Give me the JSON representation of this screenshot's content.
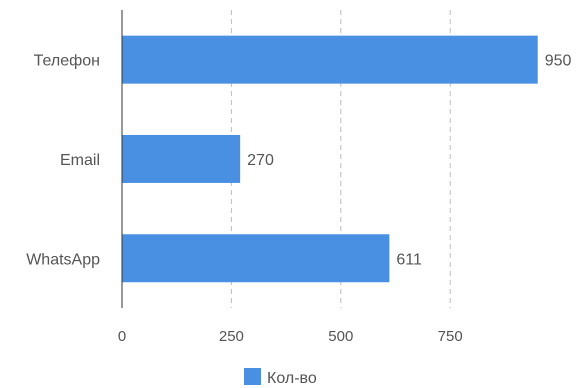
{
  "chart_data": {
    "type": "bar",
    "orientation": "horizontal",
    "categories": [
      "Телефон",
      "Email",
      "WhatsApp"
    ],
    "series": [
      {
        "name": "Кол-во",
        "values": [
          950,
          270,
          611
        ],
        "color": "#4a90e2"
      }
    ],
    "xticks": [
      0,
      250,
      500,
      750
    ],
    "xlim": [
      0,
      1000
    ],
    "grid": "vertical dashed",
    "legend": "bottom-center",
    "title": "",
    "xlabel": "",
    "ylabel": ""
  }
}
